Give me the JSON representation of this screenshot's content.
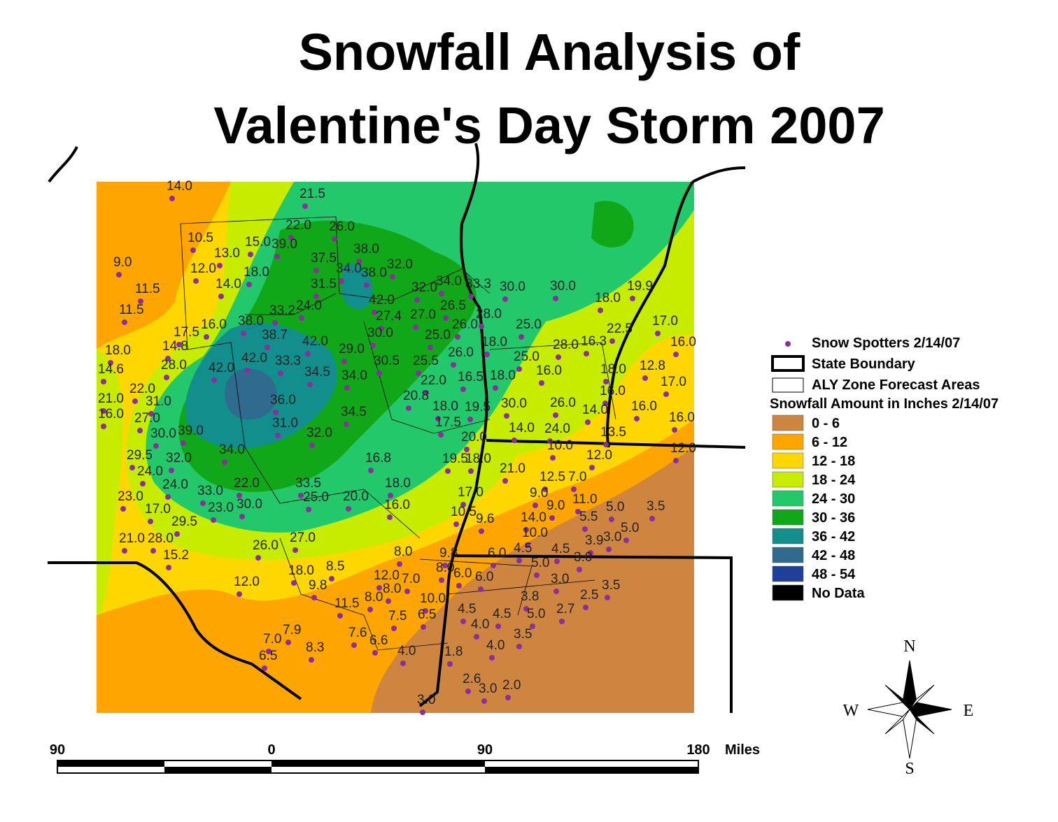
{
  "header": {
    "title_line1": "Snowfall Analysis of",
    "title_line2": "Valentine's Day Storm 2007"
  },
  "legend": {
    "items": [
      "Snow Spotters 2/14/07",
      "State Boundary",
      "ALY Zone Forecast Areas"
    ],
    "heading": "Snowfall Amount in Inches 2/14/07",
    "classes": [
      "0 - 6",
      "6 - 12",
      "12 - 18",
      "18 - 24",
      "24 - 30",
      "30 - 36",
      "36 - 42",
      "42 - 48",
      "48 - 54",
      "No Data"
    ]
  },
  "scale_bar": {
    "labels": [
      "90",
      "0",
      "90",
      "180"
    ],
    "unit": "Miles"
  },
  "compass": {
    "north": "N",
    "south": "S",
    "east": "E",
    "west": "W"
  },
  "map": {
    "spotter_labels": [
      "14.0",
      "21.5",
      "22.0",
      "26.0",
      "10.5",
      "15.0",
      "39.0",
      "13.0",
      "38.0",
      "9.0",
      "37.5",
      "12.0",
      "18.0",
      "34.0",
      "38.0",
      "32.0",
      "14.0",
      "31.5",
      "11.5",
      "32.0",
      "34.0",
      "33.3",
      "30.0",
      "30.0",
      "42.0",
      "11.5",
      "33.2",
      "24.0",
      "26.5",
      "27.4",
      "27.0",
      "28.0",
      "18.0",
      "19.9",
      "17.5",
      "16.0",
      "38.0",
      "26.0",
      "25.0",
      "38.7",
      "30.0",
      "25.0",
      "22.5",
      "17.0",
      "18.0",
      "14.8",
      "42.0",
      "18.0",
      "28.0",
      "16.3",
      "16.0",
      "29.0",
      "26.0",
      "25.0",
      "14.6",
      "28.0",
      "42.0",
      "33.3",
      "30.5",
      "25.5",
      "18.0",
      "12.8",
      "42.0",
      "34.5",
      "34.0",
      "16.5",
      "18.0",
      "16.0",
      "22.0",
      "17.0",
      "22.0",
      "21.0",
      "36.0",
      "20.8",
      "26.0",
      "16.0",
      "31.0",
      "18.0",
      "19.5",
      "30.0",
      "14.0",
      "16.0",
      "16.0",
      "27.0",
      "34.5",
      "17.5",
      "16.0",
      "31.0",
      "14.0",
      "24.0",
      "13.5",
      "30.0",
      "39.0",
      "32.0",
      "20.0",
      "12.0",
      "10.0",
      "34.0",
      "29.5",
      "32.0",
      "16.8",
      "19.5",
      "18.0",
      "12.0",
      "24.0",
      "21.0",
      "12.5",
      "7.0",
      "24.0",
      "22.0",
      "33.5",
      "18.0",
      "33.0",
      "17.0",
      "9.0",
      "23.0",
      "25.0",
      "20.0",
      "11.0",
      "30.0",
      "16.0",
      "9.0",
      "5.0",
      "3.5",
      "17.0",
      "23.0",
      "10.5",
      "9.6",
      "14.0",
      "5.5",
      "29.5",
      "5.0",
      "10.0",
      "21.0",
      "28.0",
      "27.0",
      "3.9",
      "3.0",
      "26.0",
      "4.5",
      "4.5",
      "15.2",
      "8.0",
      "9.8",
      "6.0",
      "3.0",
      "5.0",
      "18.0",
      "8.5",
      "8.0",
      "6.0",
      "6.0",
      "12.0",
      "7.0",
      "3.0",
      "12.0",
      "9.8",
      "8.0",
      "8.0",
      "3.5",
      "2.5",
      "3.8",
      "10.0",
      "11.5",
      "4.5",
      "4.5",
      "5.0",
      "2.7",
      "7.5",
      "6.5",
      "4.0",
      "7.9",
      "7.6",
      "3.5",
      "7.0",
      "6.6",
      "8.3",
      "4.0",
      "1.8",
      "4.0",
      "6.5",
      "2.6",
      "3.0",
      "2.0",
      "3.0"
    ]
  }
}
